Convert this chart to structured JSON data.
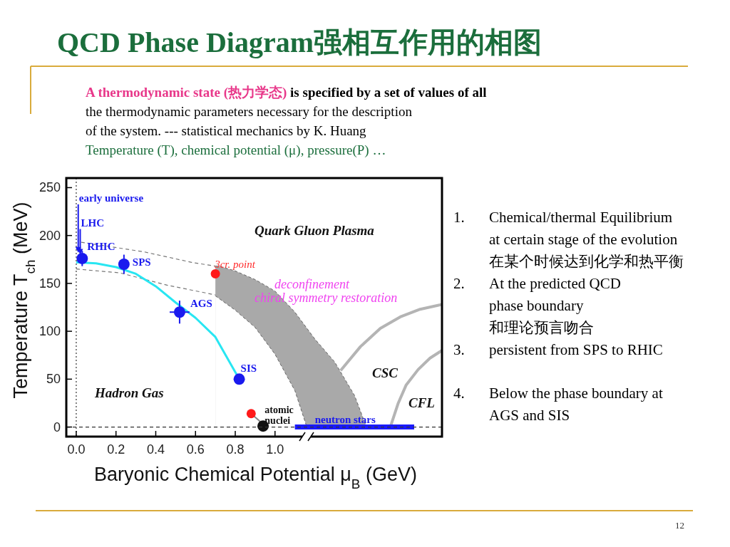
{
  "chart_data": {
    "type": "scatter",
    "title": "QCD Phase Diagram强相互作用的相图",
    "xlabel": "Baryonic Chemical Potential μ$_{B}$ (GeV)",
    "ylabel": "Temperature T$_{ch}$ (MeV)",
    "xlim": [
      -0.05,
      1.84
    ],
    "ylim": [
      -10,
      260
    ],
    "xticks": [
      {
        "value": 0,
        "label": "0.0"
      },
      {
        "value": 0.2,
        "label": "0.2"
      },
      {
        "value": 0.4,
        "label": "0.4"
      },
      {
        "value": 0.6,
        "label": "0.6"
      },
      {
        "value": 0.8,
        "label": "0.8"
      },
      {
        "value": 1,
        "label": "1.0"
      }
    ],
    "yticks": [
      0,
      50,
      100,
      150,
      200,
      250
    ],
    "ref_lines": [
      {
        "axis": "x",
        "value": 0,
        "color": "#333333",
        "line_style": "dotted"
      },
      {
        "axis": "y",
        "value": 0,
        "color": "#333333",
        "line_style": "dashed"
      }
    ],
    "series": [
      {
        "type": "area",
        "color": "#a9a9a9",
        "x": [
          0.7,
          0.72,
          0.8,
          0.9,
          1.0,
          1.1,
          1.2,
          1.3,
          1.4,
          1.46
        ],
        "values": [
          168,
          168,
          163,
          154,
          142,
          120,
          92,
          68,
          33,
          0
        ]
      },
      {
        "type": "area",
        "color": "#ffffff",
        "x": [
          0.7,
          0.72,
          0.8,
          0.9,
          1.0,
          1.1,
          1.16
        ],
        "values": [
          137,
          134,
          122,
          104,
          76,
          38,
          0
        ]
      },
      {
        "type": "line",
        "color": "#777777",
        "line_style": "dashed",
        "x": [
          0.025,
          0.34,
          0.58,
          0.7
        ],
        "values": [
          193,
          183,
          172,
          168
        ]
      },
      {
        "type": "line",
        "color": "#777777",
        "line_style": "dashed",
        "x": [
          0,
          0.22,
          0.46,
          0.7
        ],
        "values": [
          165,
          161,
          148,
          138
        ]
      },
      {
        "type": "line",
        "color": "#28e6f2",
        "x": [
          0,
          0.1,
          0.2,
          0.3,
          0.4,
          0.5,
          0.6,
          0.7,
          0.76,
          0.82
        ],
        "values": [
          172,
          171,
          167,
          160,
          147,
          130,
          114,
          94,
          72,
          50
        ]
      },
      {
        "type": "line",
        "color": "#b4b4b4",
        "x": [
          1.33,
          1.43,
          1.53,
          1.63,
          1.73,
          1.84
        ],
        "values": [
          59,
          84,
          103,
          115,
          123,
          128
        ]
      },
      {
        "type": "line",
        "color": "#b4b4b4",
        "x": [
          1.58,
          1.62,
          1.66,
          1.72,
          1.78,
          1.84
        ],
        "values": [
          0,
          25,
          44,
          60,
          72,
          80
        ]
      },
      {
        "type": "line",
        "color": "#1a1aff",
        "x": [
          1.1,
          1.7
        ],
        "values": [
          0,
          0
        ]
      },
      {
        "type": "line",
        "color": "#888888",
        "x": [
          0.88,
          0.94
        ],
        "values": [
          14,
          3
        ]
      },
      {
        "color": "#1a1aee",
        "marker": "circle",
        "x": [
          0.03,
          0.24,
          0.52,
          0.82
        ],
        "values": [
          176,
          170,
          120,
          50
        ],
        "errors": [
          8,
          10,
          12,
          null
        ],
        "xerrors": [
          null,
          null,
          0.05,
          null
        ]
      },
      {
        "color": "#ff1a1a",
        "marker": "circle",
        "x": [
          0.7,
          0.88
        ],
        "values": [
          160,
          14
        ]
      },
      {
        "color": "#111111",
        "marker": "circle",
        "x": [
          0.94
        ],
        "values": [
          1
        ]
      }
    ],
    "annotations": [
      {
        "text": "early universe",
        "x": 0.01,
        "y": 182
      },
      {
        "text": "LHC",
        "x": 0.02,
        "y": 180
      },
      {
        "text": "RHIC",
        "x": 0.03,
        "y": 176
      },
      {
        "text": "SPS",
        "x": 0.24,
        "y": 170
      },
      {
        "text": "AGS",
        "x": 0.52,
        "y": 120
      },
      {
        "text": "SIS",
        "x": 0.82,
        "y": 50
      },
      {
        "text": "3cr. point",
        "x": 0.7,
        "y": 160
      },
      {
        "text": "atomic\nnuclei",
        "x": 0.88,
        "y": 14
      },
      {
        "text": "neutron stars",
        "x": 1.1,
        "y": 0
      },
      "Quark Gluon Plasma",
      "deconfinement",
      "chiral symmetry restoration",
      "Hadron Gas",
      "CSC",
      "CFL",
      "A thermodynamic state (热力学态)",
      " is specified by a set of values of all",
      "the thermodynamic parameters necessary for the description",
      "of the system. --- statistical mechanics by K. Huang",
      "Temperature (T), chemical potential (μ), pressure(P) …",
      "1.",
      "Chemical/thermal Equilibrium\nat certain stage of the evolution\n在某个时候达到化学和热平衡",
      "2.",
      "At the predicted QCD\nphase boundary\n和理论预言吻合",
      "3.",
      "persistent from SPS to RHIC",
      "4.",
      "Below the phase boundary at\nAGS and SIS",
      "12"
    ]
  }
}
